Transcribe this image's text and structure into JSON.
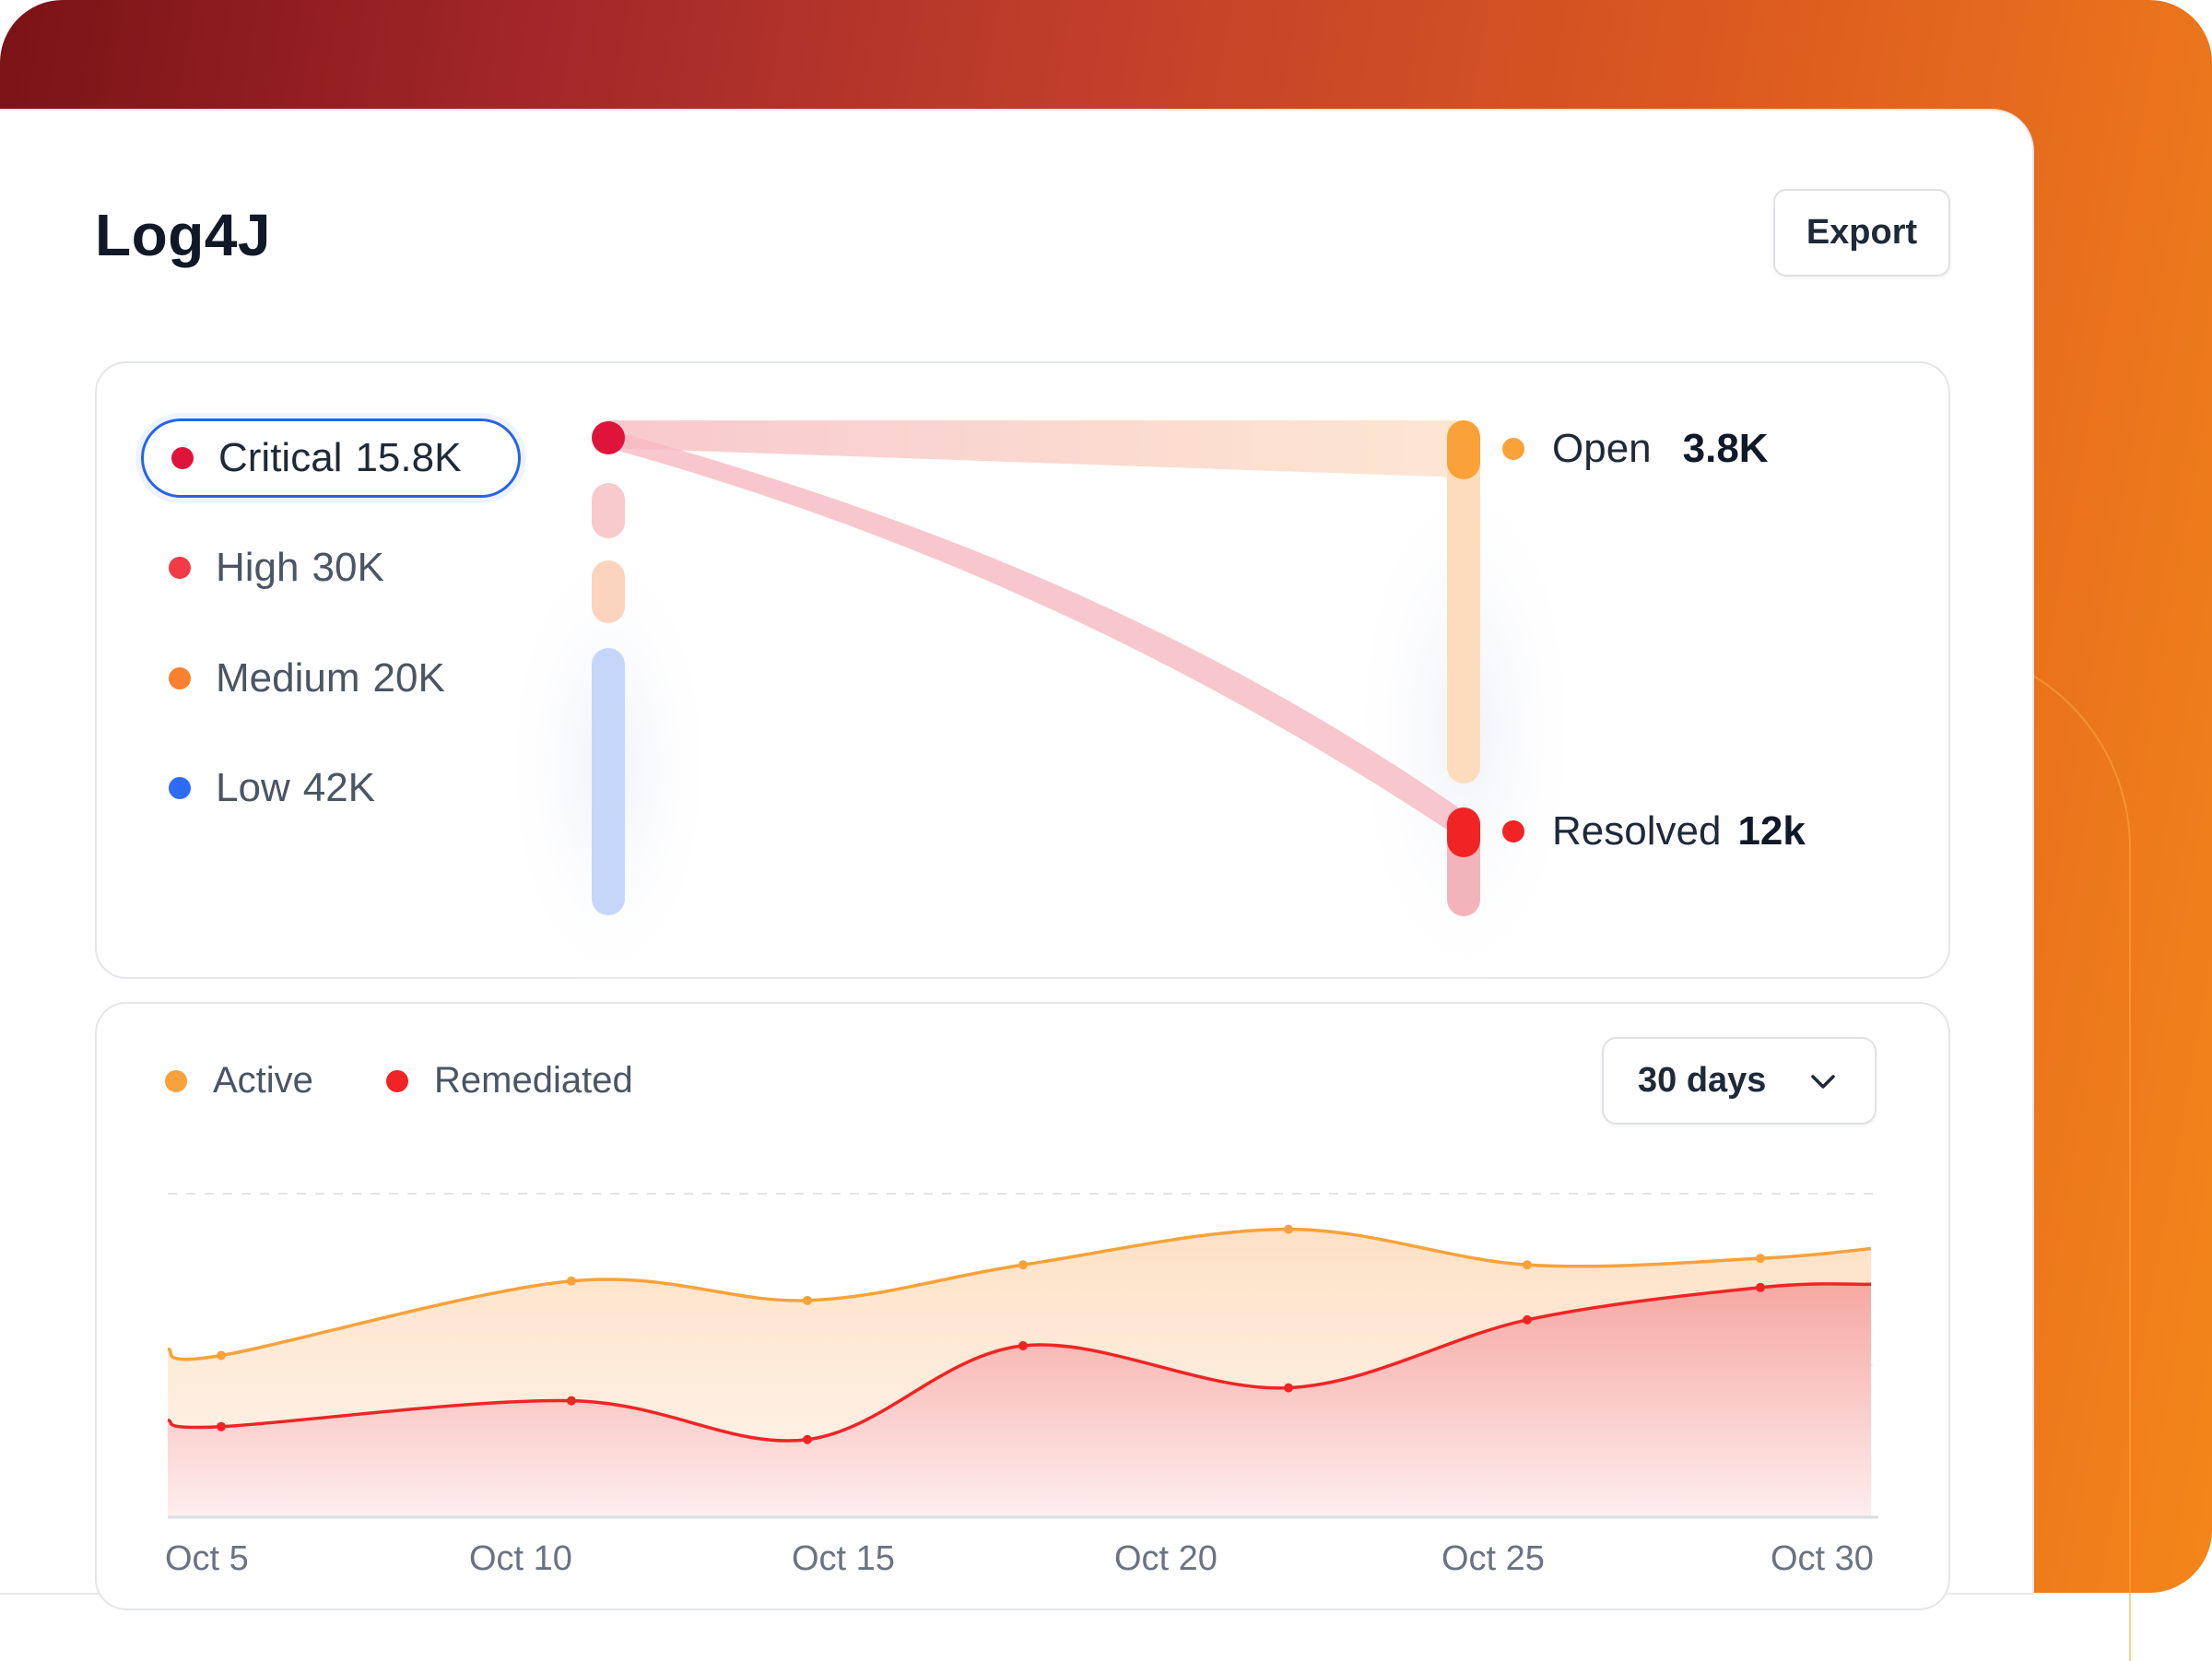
{
  "app": {
    "title": "Log4J",
    "export_label": "Export"
  },
  "severity": [
    {
      "label": "Critical",
      "value": "15.8K",
      "color": "#e0133b",
      "selected": true
    },
    {
      "label": "High",
      "value": "30K",
      "color": "#f23b47",
      "selected": false
    },
    {
      "label": "Medium",
      "value": "20K",
      "color": "#f7812f",
      "selected": false
    },
    {
      "label": "Low",
      "value": "42K",
      "color": "#2f6cf6",
      "selected": false
    }
  ],
  "outcomes": [
    {
      "label": "Open",
      "value": "3.8K",
      "color": "#f9a23a"
    },
    {
      "label": "Resolved",
      "value": "12k",
      "color": "#f02424"
    }
  ],
  "trend": {
    "legend": [
      {
        "label": "Active",
        "color": "#f9a23a"
      },
      {
        "label": "Remediated",
        "color": "#f02424"
      }
    ],
    "range_label": "30 days",
    "range_icon": "chevron-down-icon"
  },
  "chart_data": {
    "type": "area",
    "x": [
      "Oct 3",
      "Oct 4",
      "Oct 10",
      "Oct 13",
      "Oct 18",
      "Oct 22",
      "Oct 26",
      "Oct 29",
      "Oct 30"
    ],
    "x_ticks": [
      "Oct 5",
      "Oct 10",
      "Oct 15",
      "Oct 20",
      "Oct 25",
      "Oct 30"
    ],
    "series": [
      {
        "name": "Active",
        "color": "#f9a23a",
        "values": [
          0.52,
          0.5,
          0.73,
          0.67,
          0.78,
          0.89,
          0.78,
          0.8,
          0.83
        ]
      },
      {
        "name": "Remediated",
        "color": "#f02424",
        "values": [
          0.3,
          0.28,
          0.36,
          0.24,
          0.53,
          0.4,
          0.61,
          0.71,
          0.72
        ]
      }
    ],
    "ylim": [
      0,
      1
    ],
    "grid": "dashed horizontal",
    "legend_position": "top-left"
  }
}
